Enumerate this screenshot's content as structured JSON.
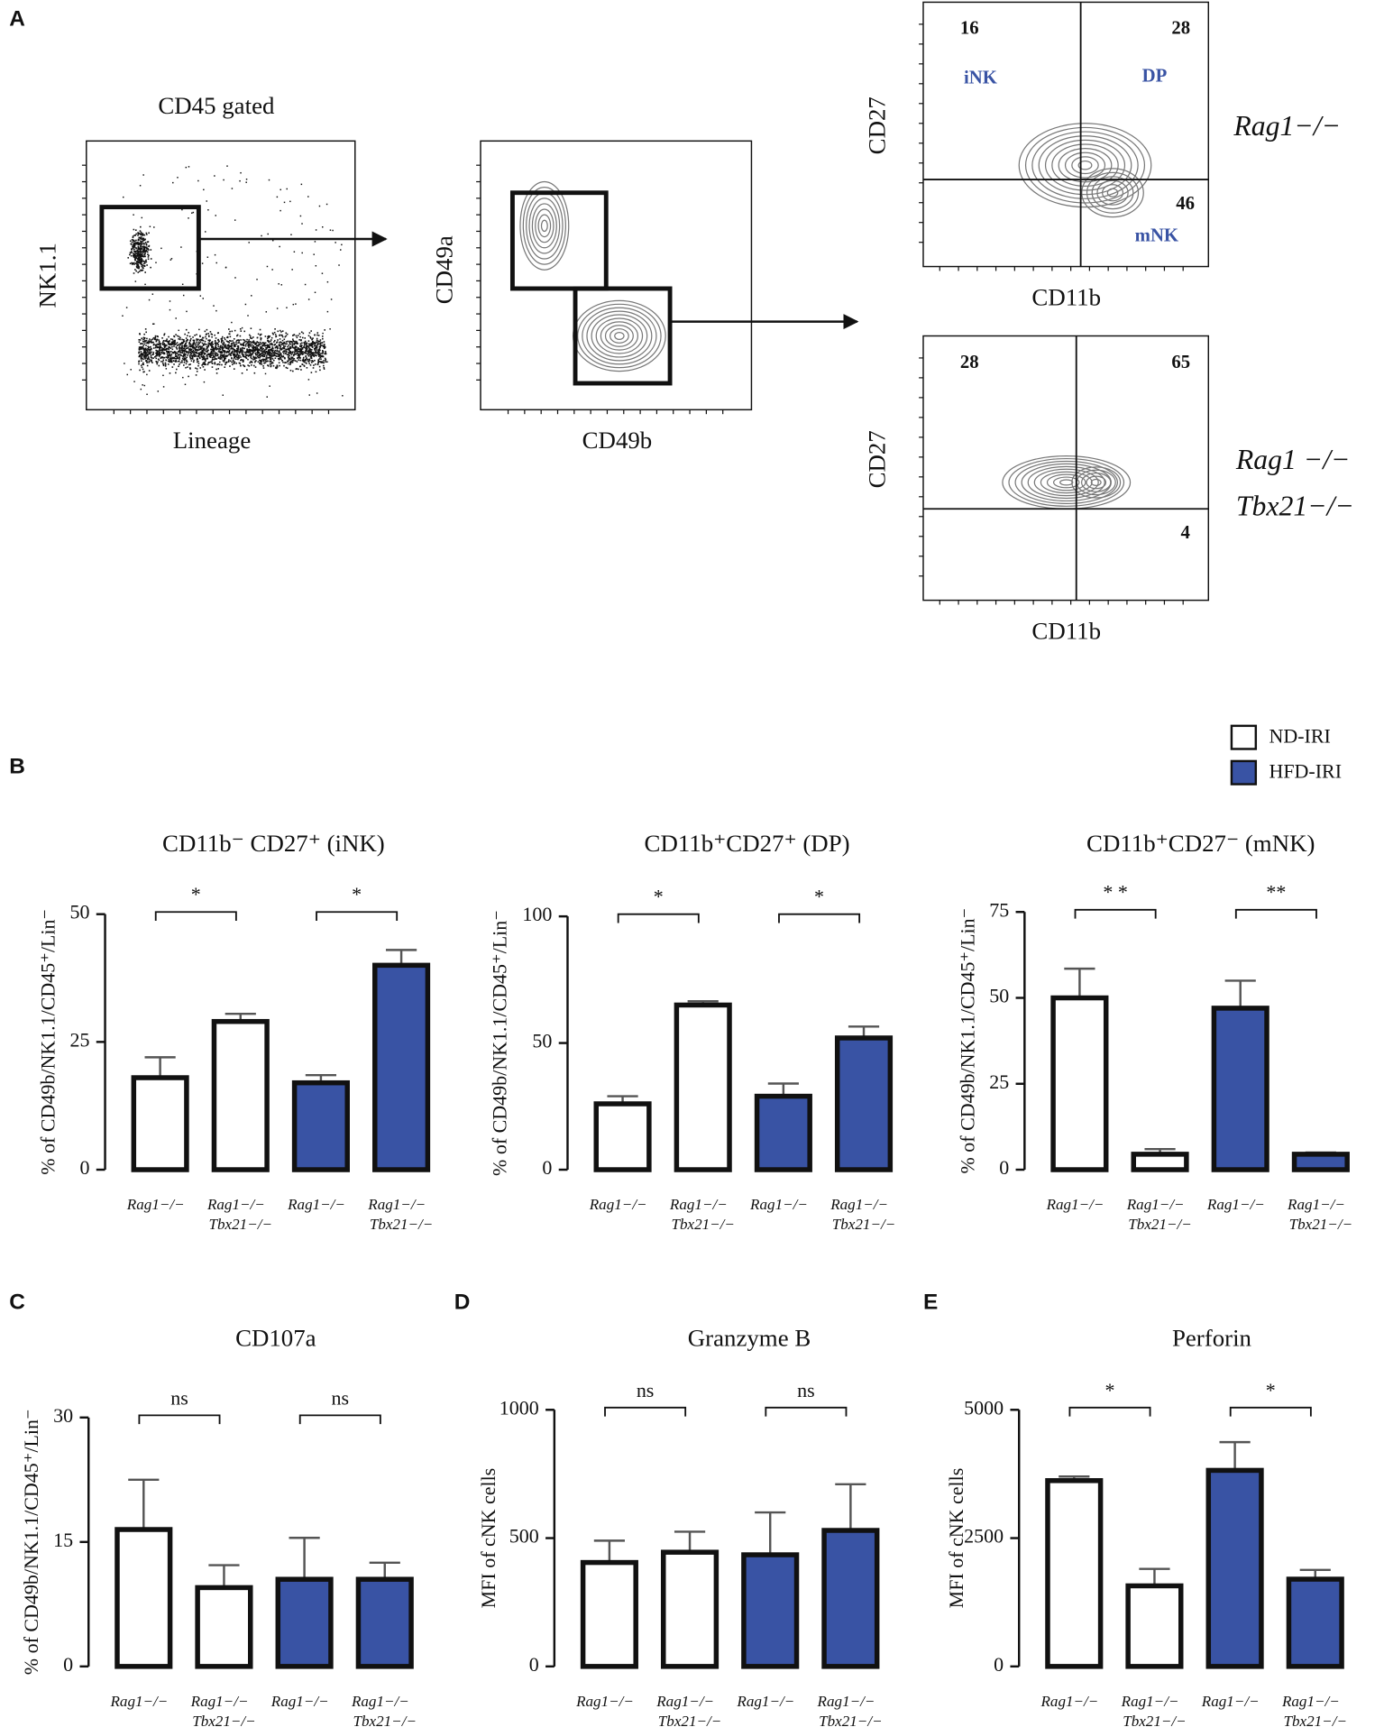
{
  "panel_a": {
    "letter": "A",
    "gate_label": "CD45 gated",
    "plot1": {
      "x_label": "Lineage",
      "y_label": "NK1.1"
    },
    "plot2": {
      "x_label": "CD49b",
      "y_label": "CD49a"
    },
    "quadrants": [
      {
        "x_label": "CD11b",
        "y_label": "CD27",
        "genotype": [
          "Rag1−/−"
        ],
        "values": [
          16,
          28,
          46
        ],
        "subsets": [
          "iNK",
          "DP",
          "mNK"
        ]
      },
      {
        "x_label": "CD11b",
        "y_label": "CD27",
        "genotype": [
          "Rag1 −/−",
          "Tbx21−/−"
        ],
        "values": [
          28,
          65,
          4
        ]
      }
    ]
  },
  "legend": [
    {
      "name": "ND-IRI",
      "color": "#ffffff"
    },
    {
      "name": "HFD-IRI",
      "color": "#3953a4"
    }
  ],
  "chart_data": [
    {
      "type": "bar",
      "panel": "B",
      "title": "CD11b⁻ CD27⁺ (iNK)",
      "y_label": "% of CD49b/NK1.1/CD45⁺/Lin⁻",
      "categories": [
        [
          "Rag1−/−"
        ],
        [
          "Rag1−/−",
          "Tbx21−/−"
        ],
        [
          "Rag1−/−"
        ],
        [
          "Rag1−/−",
          "Tbx21−/−"
        ]
      ],
      "values": [
        18,
        29,
        17,
        40
      ],
      "errors": [
        4,
        1.5,
        1.5,
        3
      ],
      "bar_colors": [
        "#ffffff",
        "#ffffff",
        "#3953a4",
        "#3953a4"
      ],
      "ylim": [
        0,
        50
      ],
      "yticks": [
        0,
        25,
        50
      ],
      "brackets": [
        "*",
        "*"
      ]
    },
    {
      "type": "bar",
      "title": "CD11b⁺CD27⁺ (DP)",
      "y_label": "% of CD49b/NK1.1/CD45⁺/Lin⁻",
      "categories": [
        [
          "Rag1−/−"
        ],
        [
          "Rag1−/−",
          "Tbx21−/−"
        ],
        [
          "Rag1−/−"
        ],
        [
          "Rag1−/−",
          "Tbx21−/−"
        ]
      ],
      "values": [
        26,
        65,
        29,
        52
      ],
      "errors": [
        3,
        1.5,
        5,
        4.5
      ],
      "bar_colors": [
        "#ffffff",
        "#ffffff",
        "#3953a4",
        "#3953a4"
      ],
      "ylim": [
        0,
        100
      ],
      "yticks": [
        0,
        50,
        100
      ],
      "brackets": [
        "*",
        "*"
      ]
    },
    {
      "type": "bar",
      "title": "CD11b⁺CD27⁻ (mNK)",
      "y_label": "% of CD49b/NK1.1/CD45⁺/Lin⁻",
      "categories": [
        [
          "Rag1−/−"
        ],
        [
          "Rag1−/−",
          "Tbx21−/−"
        ],
        [
          "Rag1−/−"
        ],
        [
          "Rag1−/−",
          "Tbx21−/−"
        ]
      ],
      "values": [
        50,
        4.5,
        47,
        4.5
      ],
      "errors": [
        8.5,
        1.5,
        8,
        0.5
      ],
      "bar_colors": [
        "#ffffff",
        "#ffffff",
        "#3953a4",
        "#3953a4"
      ],
      "ylim": [
        0,
        75
      ],
      "yticks": [
        0,
        25,
        50,
        75
      ],
      "brackets": [
        "* *",
        "**"
      ]
    },
    {
      "type": "bar",
      "panel": "C",
      "title": "CD107a",
      "y_label": "% of CD49b/NK1.1/CD45⁺/Lin⁻",
      "categories": [
        [
          "Rag1−/−"
        ],
        [
          "Rag1−/−",
          "Tbx21−/−"
        ],
        [
          "Rag1−/−"
        ],
        [
          "Rag1−/−",
          "Tbx21−/−"
        ]
      ],
      "values": [
        16.5,
        9.5,
        10.5,
        10.5
      ],
      "errors": [
        6,
        2.7,
        5,
        2
      ],
      "bar_colors": [
        "#ffffff",
        "#ffffff",
        "#3953a4",
        "#3953a4"
      ],
      "ylim": [
        0,
        30
      ],
      "yticks": [
        0,
        15,
        30
      ],
      "brackets": [
        "ns",
        "ns"
      ]
    },
    {
      "type": "bar",
      "panel": "D",
      "title": "Granzyme B",
      "y_label": "MFI of cNK cells",
      "categories": [
        [
          "Rag1−/−"
        ],
        [
          "Rag1−/−",
          "Tbx21−/−"
        ],
        [
          "Rag1−/−"
        ],
        [
          "Rag1−/−",
          "Tbx21−/−"
        ]
      ],
      "values": [
        405,
        445,
        435,
        530
      ],
      "errors": [
        85,
        80,
        165,
        180
      ],
      "bar_colors": [
        "#ffffff",
        "#ffffff",
        "#3953a4",
        "#3953a4"
      ],
      "ylim": [
        0,
        1000
      ],
      "yticks": [
        0,
        500,
        1000
      ],
      "brackets": [
        "ns",
        "ns"
      ]
    },
    {
      "type": "bar",
      "panel": "E",
      "title": "Perforin",
      "y_label": "MFI of cNK cells",
      "categories": [
        [
          "Rag1−/−"
        ],
        [
          "Rag1−/−",
          "Tbx21−/−"
        ],
        [
          "Rag1−/−"
        ],
        [
          "Rag1−/−",
          "Tbx21−/−"
        ]
      ],
      "values": [
        3620,
        1570,
        3820,
        1700
      ],
      "errors": [
        80,
        330,
        550,
        180
      ],
      "bar_colors": [
        "#ffffff",
        "#ffffff",
        "#3953a4",
        "#3953a4"
      ],
      "ylim": [
        0,
        5000
      ],
      "yticks": [
        0,
        2500,
        5000
      ],
      "brackets": [
        "*",
        "*"
      ]
    }
  ]
}
